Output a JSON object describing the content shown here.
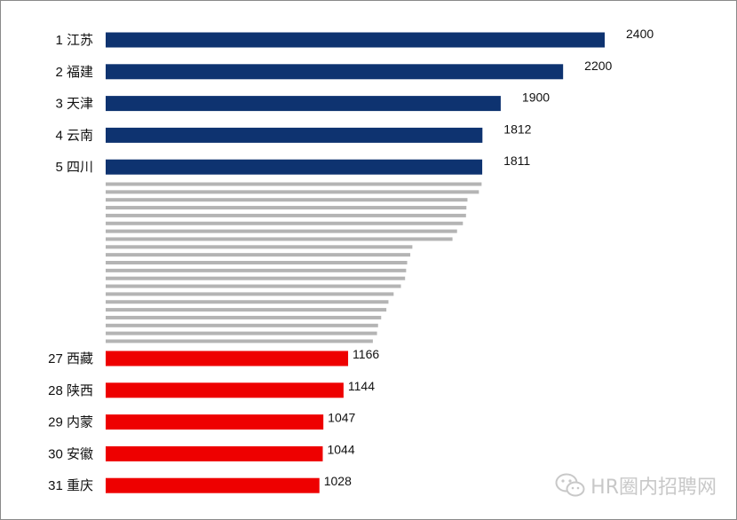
{
  "chart_data": {
    "type": "bar",
    "orientation": "horizontal",
    "title": "",
    "xlabel": "",
    "ylabel": "",
    "xlim": [
      0,
      2400
    ],
    "colors": {
      "top": "#0e3370",
      "middle": "#b4b4b4",
      "bottom": "#ee0000"
    },
    "top": [
      {
        "label": "1 江苏",
        "value": 2400
      },
      {
        "label": "2 福建",
        "value": 2200
      },
      {
        "label": "3 天津",
        "value": 1900
      },
      {
        "label": "4 云南",
        "value": 1812
      },
      {
        "label": "5 四川",
        "value": 1811
      }
    ],
    "middle_values": [
      1808,
      1795,
      1740,
      1735,
      1733,
      1718,
      1690,
      1668,
      1475,
      1465,
      1450,
      1445,
      1440,
      1420,
      1385,
      1360,
      1350,
      1325,
      1310,
      1305,
      1285
    ],
    "bottom": [
      {
        "label": "27 西藏",
        "value": 1166
      },
      {
        "label": "28 陕西",
        "value": 1144
      },
      {
        "label": "29 内蒙",
        "value": 1047
      },
      {
        "label": "30 安徽",
        "value": 1044
      },
      {
        "label": "31 重庆",
        "value": 1028
      }
    ]
  },
  "watermark": {
    "icon": "wechat-icon",
    "text": "HR圈内招聘网"
  }
}
